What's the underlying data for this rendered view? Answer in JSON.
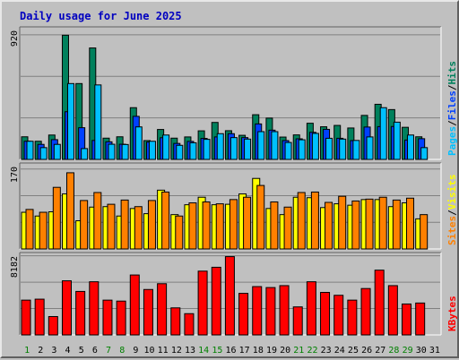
{
  "chart_data": {
    "type": "bar",
    "title": "Daily usage for June 2025",
    "categories": [
      "1",
      "2",
      "3",
      "4",
      "5",
      "6",
      "7",
      "8",
      "9",
      "10",
      "11",
      "12",
      "13",
      "14",
      "15",
      "16",
      "17",
      "18",
      "19",
      "20",
      "21",
      "22",
      "23",
      "24",
      "25",
      "26",
      "27",
      "28",
      "29",
      "30",
      "31"
    ],
    "weekend_days": [
      "1",
      "7",
      "8",
      "14",
      "15",
      "21",
      "22",
      "28",
      "29"
    ],
    "panels": [
      {
        "name": "hits-files-pages",
        "ymax_label": "920",
        "ylim": [
          0,
          920
        ],
        "legend": [
          {
            "label": "Pages",
            "color": "#00c0ff"
          },
          {
            "label": "Files",
            "color": "#0040ff"
          },
          {
            "label": "Hits",
            "color": "#00805c"
          }
        ],
        "separator": "/",
        "series": [
          {
            "name": "Hits",
            "color": "#00805c",
            "values": [
              167,
              134,
              180,
              917,
              560,
              823,
              157,
              167,
              382,
              139,
              221,
              157,
              166,
              211,
              273,
              212,
              178,
              330,
              305,
              165,
              181,
              267,
              241,
              251,
              232,
              325,
              407,
              368,
              237,
              167,
              0
            ]
          },
          {
            "name": "Files",
            "color": "#0040ff",
            "values": [
              134,
              111,
              146,
              352,
              234,
              140,
              130,
              112,
              318,
              128,
              160,
              118,
              133,
              155,
              166,
              190,
              161,
              262,
              216,
              139,
              152,
              200,
              222,
              156,
              139,
              239,
              242,
              243,
              143,
              153,
              0
            ]
          },
          {
            "name": "Pages",
            "color": "#00c0ff",
            "values": [
              134,
              87,
              111,
              560,
              80,
              550,
              112,
              110,
              240,
              134,
              180,
              104,
              123,
              148,
              190,
              161,
              150,
              205,
              205,
              125,
              145,
              192,
              156,
              150,
              140,
              166,
              382,
              275,
              180,
              87,
              0
            ]
          }
        ]
      },
      {
        "name": "visits-sites",
        "ymax_label": "170",
        "ylim": [
          0,
          170
        ],
        "legend": [
          {
            "label": "Sites",
            "color": "#ff8000"
          },
          {
            "label": "Visits",
            "color": "#ffff00"
          }
        ],
        "separator": "/",
        "series": [
          {
            "name": "Visits",
            "color": "#ffff00",
            "values": [
              78,
              70,
              79,
              117,
              60,
              89,
              90,
              70,
              86,
              75,
              125,
              73,
              94,
              110,
              94,
              95,
              117,
              150,
              86,
              73,
              110,
              109,
              88,
              96,
              93,
              105,
              105,
              90,
              98,
              64,
              0
            ]
          },
          {
            "name": "Sites",
            "color": "#ff8000",
            "values": [
              84,
              78,
              131,
              162,
              103,
              120,
              95,
              104,
              90,
              103,
              121,
              70,
              98,
              100,
              96,
              105,
              110,
              135,
              100,
              89,
              120,
              121,
              99,
              112,
              102,
              106,
              110,
              104,
              108,
              73,
              0
            ]
          }
        ]
      },
      {
        "name": "kbytes",
        "ymax_label": "8182",
        "ylim": [
          0,
          8182
        ],
        "legend": [
          {
            "label": "KBytes",
            "color": "#ff0000"
          }
        ],
        "series": [
          {
            "name": "KBytes",
            "color": "#ff0000",
            "values": [
              3600,
              3700,
              1900,
              5600,
              4500,
              5500,
              3600,
              3500,
              6200,
              4700,
              5300,
              2800,
              2200,
              6600,
              7000,
              8100,
              4300,
              5000,
              4900,
              5100,
              2900,
              5500,
              4400,
              4100,
              3600,
              4800,
              6700,
              5100,
              3200,
              3300,
              0
            ]
          }
        ]
      }
    ]
  },
  "colors": {
    "background": "#c0c0c0",
    "plot_background": "#c0c0c0",
    "title": "#0000c0",
    "separator": "#000000",
    "weekend_tick": "#008000",
    "weekday_tick": "#000000"
  }
}
